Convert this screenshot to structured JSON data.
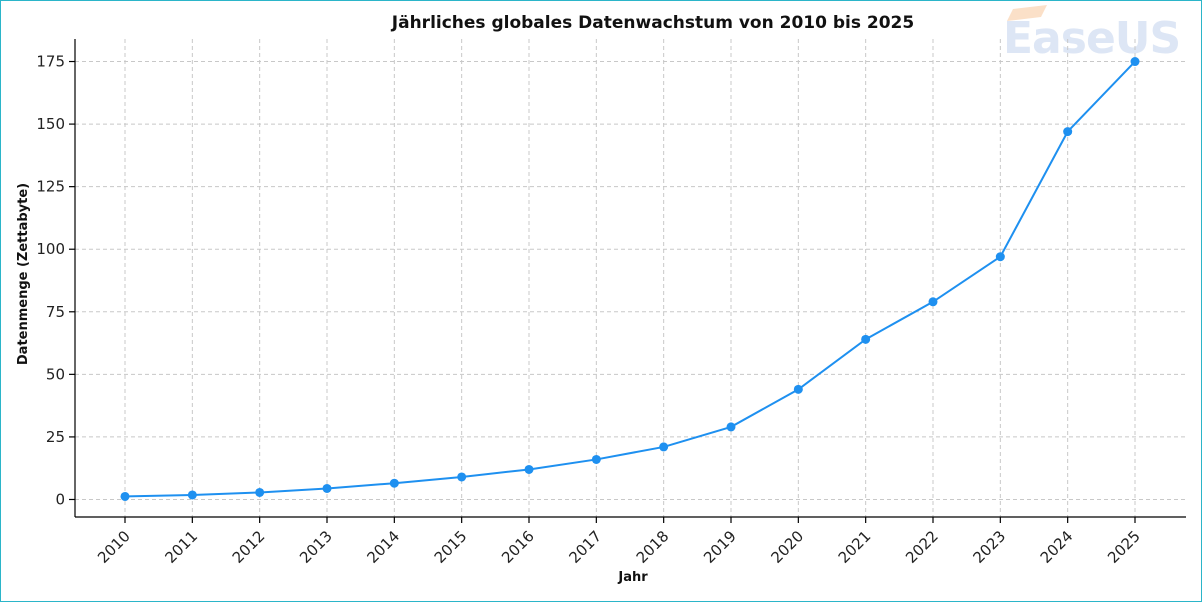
{
  "chart_data": {
    "type": "line",
    "title": "Jährliches globales Datenwachstum von 2010 bis 2025",
    "xlabel": "Jahr",
    "ylabel": "Datenmenge (Zettabyte)",
    "categories": [
      "2010",
      "2011",
      "2012",
      "2013",
      "2014",
      "2015",
      "2016",
      "2017",
      "2018",
      "2019",
      "2020",
      "2021",
      "2022",
      "2023",
      "2024",
      "2025"
    ],
    "series": [
      {
        "values": [
          1.2,
          1.8,
          2.8,
          4.4,
          6.5,
          9,
          12,
          16,
          21,
          29,
          44,
          64,
          79,
          97,
          147,
          175
        ]
      }
    ],
    "ylim": [
      -7,
      184
    ],
    "yticks": [
      0,
      25,
      50,
      75,
      100,
      125,
      150,
      175
    ],
    "grid": true,
    "color": "#1e90f0"
  },
  "watermark": {
    "text": "EaseUS",
    "icon": "easeus-logo-icon"
  }
}
